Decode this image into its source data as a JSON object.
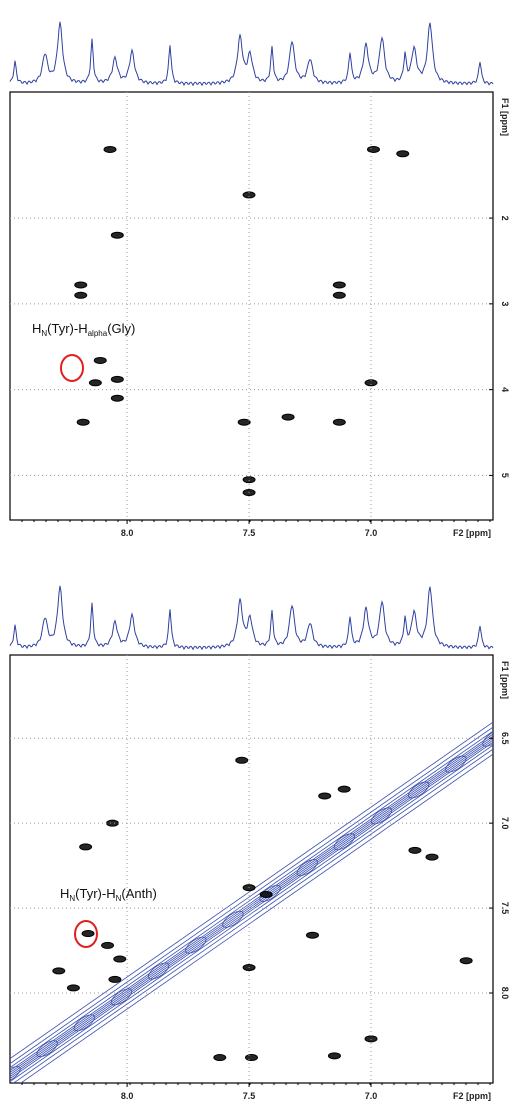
{
  "chart_data": [
    {
      "type": "scatter",
      "xlabel": "F2 [ppm]",
      "ylabel": "F1 [ppm]",
      "annotation": [
        "H",
        "N",
        "(Tyr)-H",
        "alpha",
        "(Gly)"
      ],
      "xlim": [
        8.48,
        6.5
      ],
      "xticks": [
        {
          "value": 8,
          "label": "8.0"
        },
        7.5,
        {
          "value": 7,
          "label": "7.0"
        }
      ],
      "ylim": [
        0.53,
        5.52
      ],
      "yticks": [
        2,
        3,
        4,
        5
      ],
      "grid": true,
      "series": [
        {
          "color": "#000000",
          "x": [
            8.07,
            6.99,
            6.87,
            7.5,
            8.04,
            8.19,
            8.19,
            7.13,
            7.13,
            8.11,
            8.13,
            8.04,
            8.04,
            7.0,
            8.18,
            7.52,
            7.34,
            7.13,
            7.5,
            7.5
          ],
          "values": [
            1.2,
            1.2,
            1.25,
            1.73,
            2.2,
            2.78,
            2.9,
            2.78,
            2.9,
            3.66,
            3.92,
            3.88,
            4.1,
            3.92,
            4.38,
            4.38,
            4.32,
            4.38,
            5.05,
            5.2
          ]
        }
      ]
    },
    {
      "type": "scatter",
      "xlabel": "F2 [ppm]",
      "ylabel": "F1 [ppm]",
      "annotation": [
        "H",
        "N",
        "(Tyr)-H",
        "N",
        "(Anth)"
      ],
      "xlim": [
        8.48,
        6.5
      ],
      "xticks": [
        {
          "value": 8,
          "label": "8.0"
        },
        7.5,
        {
          "value": 7,
          "label": "7.0"
        }
      ],
      "ylim": [
        6.01,
        8.53
      ],
      "yticks": [
        6.5,
        {
          "value": 7,
          "label": "7.0"
        },
        7.5,
        {
          "value": 8,
          "label": "8.0"
        }
      ],
      "grid": true,
      "series": [
        {
          "color": "#000000",
          "x": [
            7.53,
            7.11,
            7.19,
            8.06,
            6.82,
            6.75,
            8.17,
            7.5,
            7.43,
            8.16,
            7.24,
            8.08,
            8.03,
            8.28,
            7.5,
            8.22,
            8.05,
            7.62,
            7.49,
            7.15,
            7.0,
            6.61
          ],
          "values": [
            6.63,
            6.8,
            6.84,
            7.0,
            7.16,
            7.2,
            7.14,
            7.38,
            7.42,
            7.65,
            7.66,
            7.72,
            7.8,
            7.87,
            7.85,
            7.97,
            7.92,
            8.38,
            8.38,
            8.37,
            8.27,
            7.81
          ]
        }
      ]
    }
  ]
}
